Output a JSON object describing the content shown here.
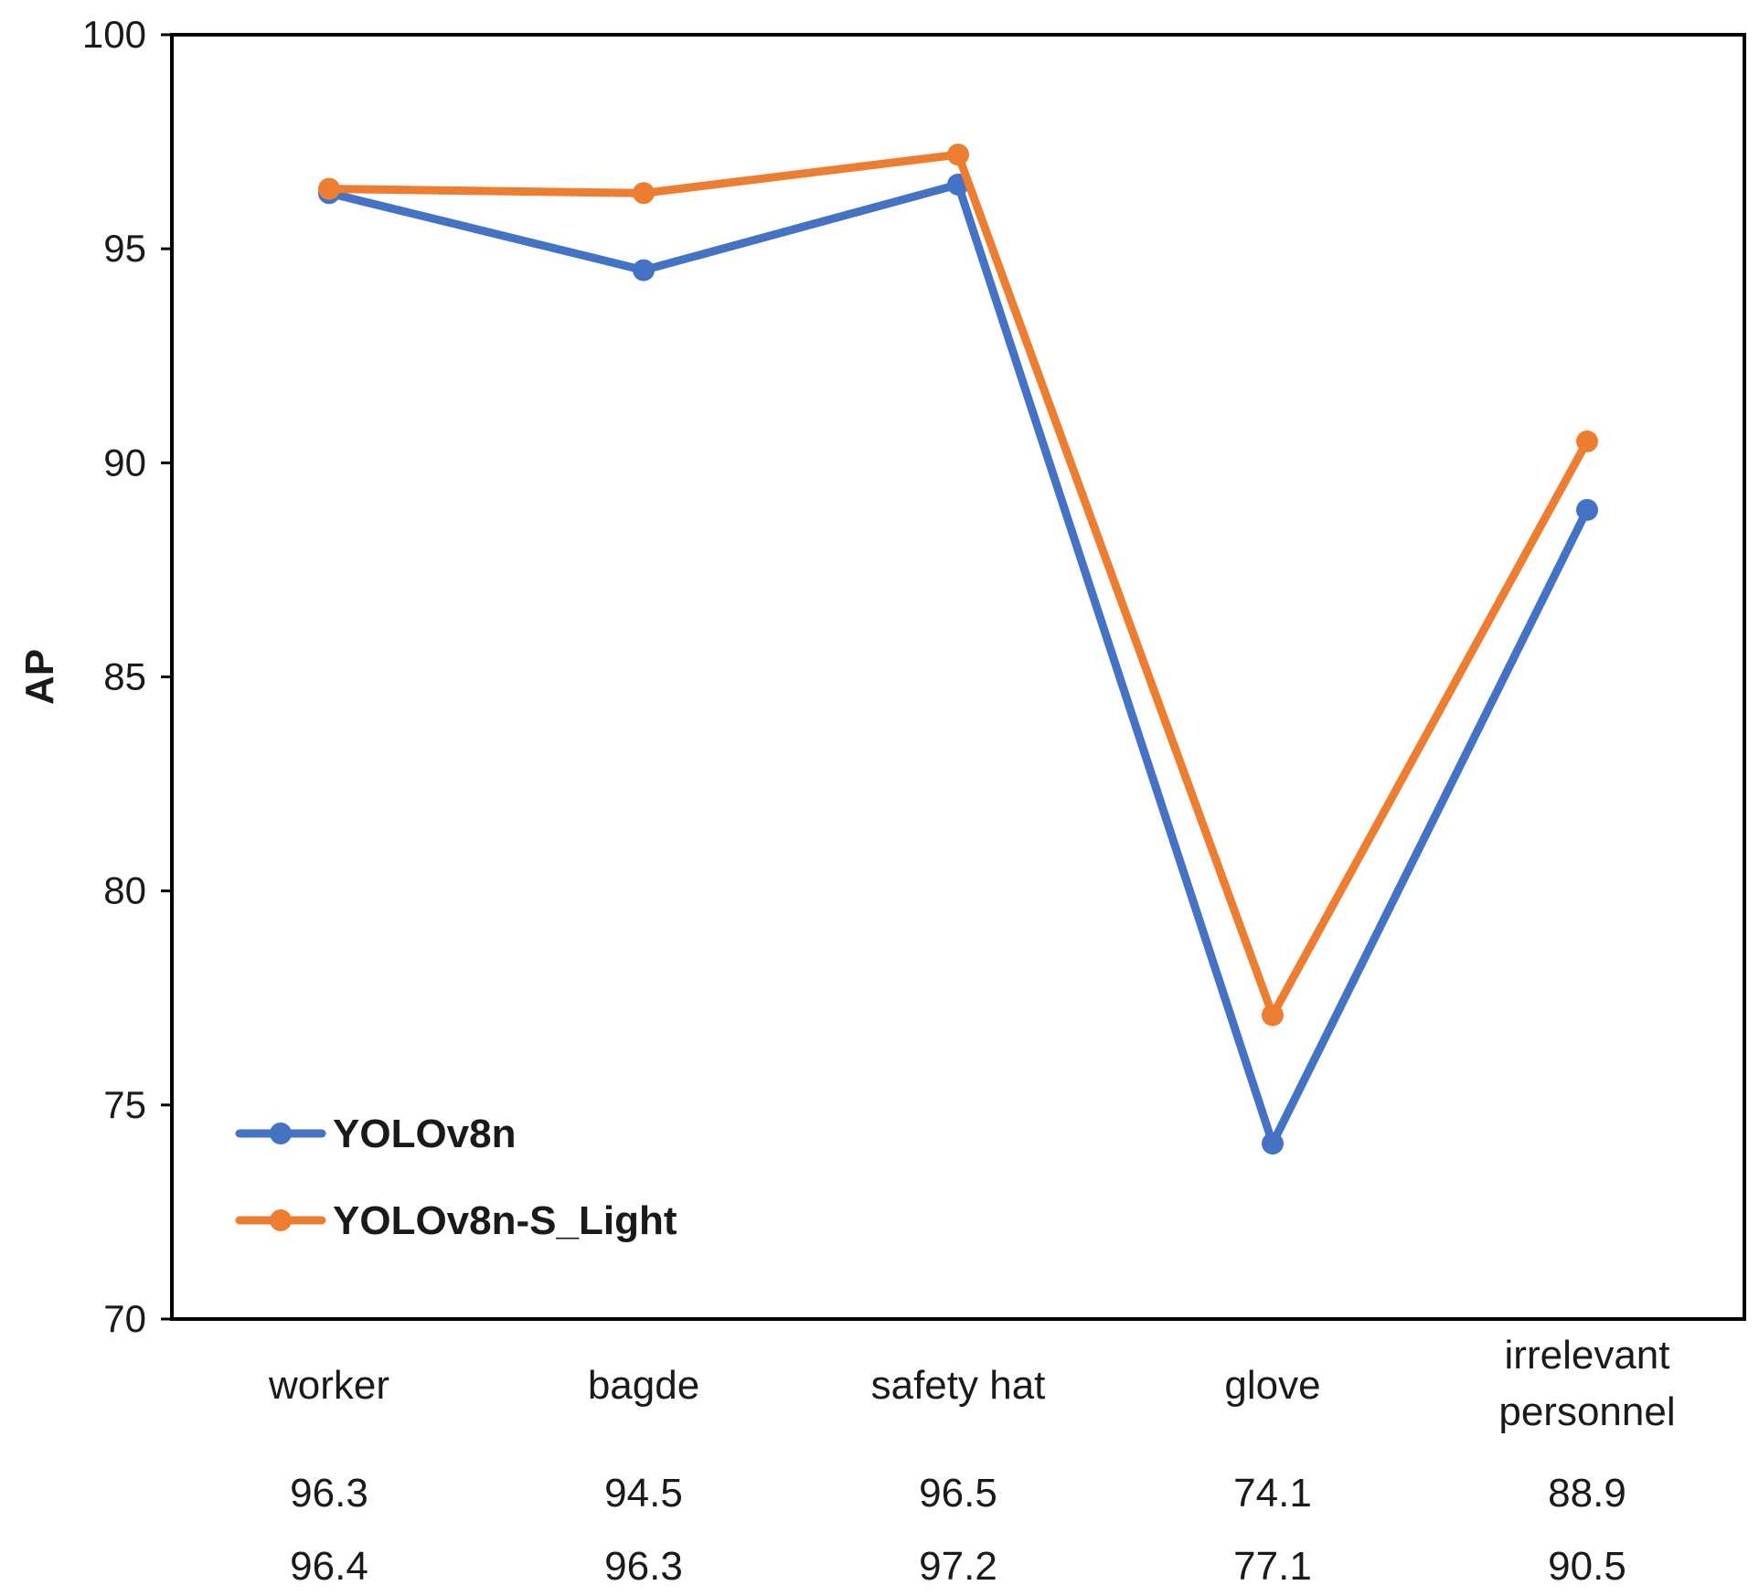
{
  "chart_data": {
    "type": "line",
    "title": "",
    "xlabel": "",
    "ylabel": "AP",
    "ylim": [
      70,
      100
    ],
    "yticks": [
      70,
      75,
      80,
      85,
      90,
      95,
      100
    ],
    "categories": [
      [
        "worker"
      ],
      [
        "bagde"
      ],
      [
        "safety hat"
      ],
      [
        "glove"
      ],
      [
        "irrelevant",
        "personnel"
      ]
    ],
    "series": [
      {
        "name": "YOLOv8n",
        "color": "#4472C4",
        "values": [
          96.3,
          94.5,
          96.5,
          74.1,
          88.9
        ],
        "value_text": [
          "96.3",
          "94.5",
          "96.5",
          "74.1",
          "88.9"
        ]
      },
      {
        "name": "YOLOv8n-S_Light",
        "color": "#ED7D31",
        "values": [
          96.4,
          96.3,
          97.2,
          77.1,
          90.5
        ],
        "value_text": [
          "96.4",
          "96.3",
          "97.2",
          "77.1",
          "90.5"
        ]
      }
    ],
    "grid": false,
    "legend_position": "bottom-left",
    "data_table": true
  }
}
